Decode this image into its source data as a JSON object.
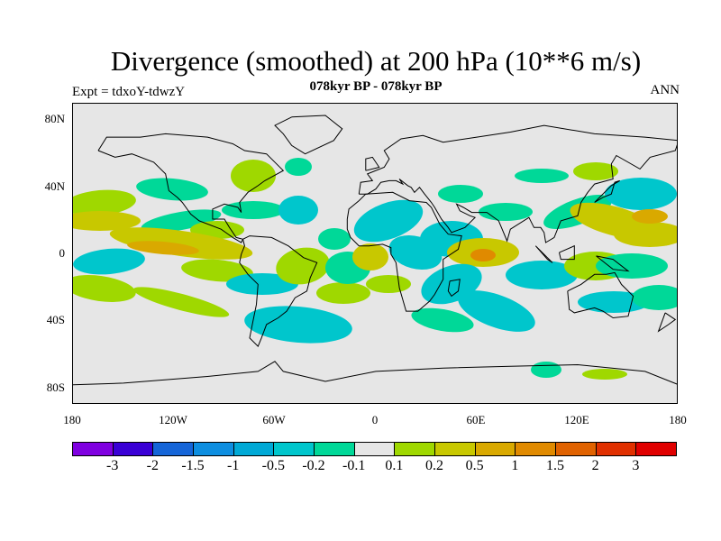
{
  "title": "Divergence (smoothed) at 200 hPa (10**6 m/s)",
  "subtitle_left": "Expt = tdxoY-tdwzY",
  "subtitle_center": "078kyr BP - 078kyr BP",
  "subtitle_right": "ANN",
  "y_axis_labels": [
    "80N",
    "40N",
    "0",
    "40S",
    "80S"
  ],
  "x_axis_labels": [
    "180",
    "120W",
    "60W",
    "0",
    "60E",
    "120E",
    "180"
  ],
  "colorbar": {
    "colors": [
      "#7f00e0",
      "#3a00d6",
      "#1565d8",
      "#0d8ee0",
      "#00a9d6",
      "#00c6cc",
      "#00d898",
      "#e6e6e6",
      "#9fd800",
      "#c8c800",
      "#d9a900",
      "#e08a00",
      "#e06200",
      "#e03000",
      "#e00000"
    ],
    "labels": [
      "-3",
      "-2",
      "-1.5",
      "-1",
      "-0.5",
      "-0.2",
      "-0.1",
      "0.1",
      "0.2",
      "0.5",
      "1",
      "1.5",
      "2",
      "3"
    ]
  },
  "map_colors": {
    "background": "#e6e6e6",
    "pos_weak": "#9fd800",
    "pos_mid": "#c8c800",
    "pos_strong": "#d9a900",
    "pos_stronger": "#e08a00",
    "neg_weak": "#00d898",
    "neg_mid": "#00c6cc",
    "neg_strong": "#00a9d6"
  }
}
